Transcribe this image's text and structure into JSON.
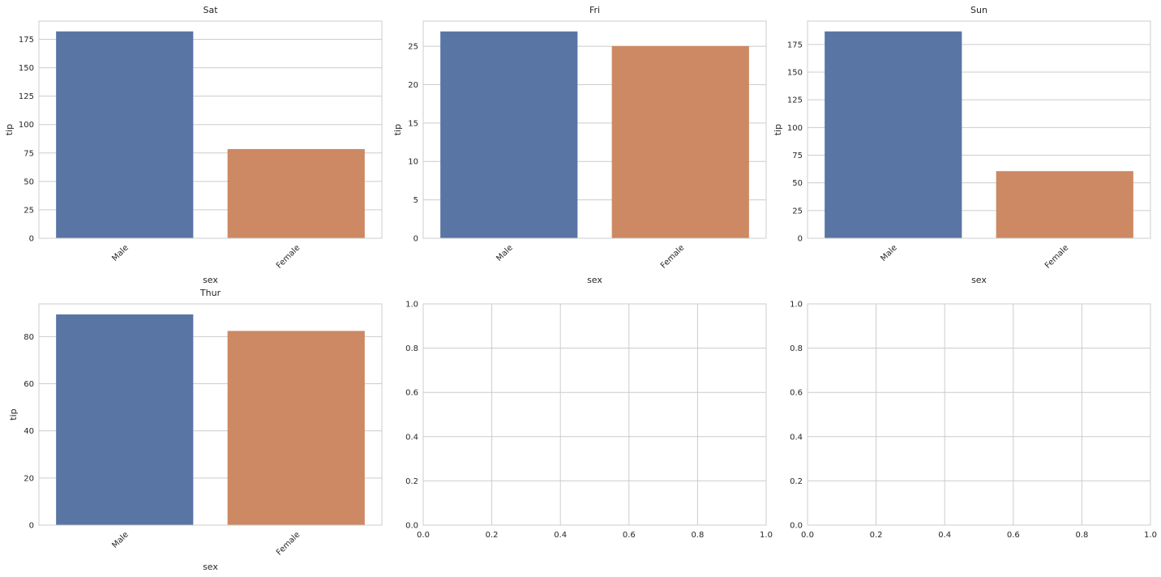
{
  "colors": {
    "Male": "#5975a4",
    "Female": "#cc8963",
    "grid": "#cccccc",
    "text": "#262626"
  },
  "chart_data": [
    {
      "type": "bar",
      "title": "Sat",
      "xlabel": "sex",
      "ylabel": "tip",
      "categories": [
        "Male",
        "Female"
      ],
      "values": [
        181.95,
        78.45
      ],
      "ylim": [
        0,
        191.04
      ],
      "yticks": [
        "0",
        "25",
        "50",
        "75",
        "100",
        "125",
        "150",
        "175"
      ],
      "grid": true
    },
    {
      "type": "bar",
      "title": "Fri",
      "xlabel": "sex",
      "ylabel": "tip",
      "categories": [
        "Male",
        "Female"
      ],
      "values": [
        26.93,
        25.03
      ],
      "ylim": [
        0,
        28.28
      ],
      "yticks": [
        "0",
        "5",
        "10",
        "15",
        "20",
        "25"
      ],
      "grid": true
    },
    {
      "type": "bar",
      "title": "Sun",
      "xlabel": "sex",
      "ylabel": "tip",
      "categories": [
        "Male",
        "Female"
      ],
      "values": [
        186.78,
        60.61
      ],
      "ylim": [
        0,
        196.12
      ],
      "yticks": [
        "0",
        "25",
        "50",
        "75",
        "100",
        "125",
        "150",
        "175"
      ],
      "grid": true
    },
    {
      "type": "bar",
      "title": "Thur",
      "xlabel": "sex",
      "ylabel": "tip",
      "categories": [
        "Male",
        "Female"
      ],
      "values": [
        89.41,
        82.42
      ],
      "ylim": [
        0,
        93.88
      ],
      "yticks": [
        "0",
        "20",
        "40",
        "60",
        "80"
      ],
      "grid": true
    },
    {
      "type": "bar",
      "title": "",
      "xlabel": "",
      "ylabel": "",
      "categories": [],
      "values": [],
      "xlim": [
        0,
        1
      ],
      "ylim": [
        0,
        1
      ],
      "xticks": [
        "0.0",
        "0.2",
        "0.4",
        "0.6",
        "0.8",
        "1.0"
      ],
      "yticks": [
        "0.0",
        "0.2",
        "0.4",
        "0.6",
        "0.8",
        "1.0"
      ],
      "grid": true
    },
    {
      "type": "bar",
      "title": "",
      "xlabel": "",
      "ylabel": "",
      "categories": [],
      "values": [],
      "xlim": [
        0,
        1
      ],
      "ylim": [
        0,
        1
      ],
      "xticks": [
        "0.0",
        "0.2",
        "0.4",
        "0.6",
        "0.8",
        "1.0"
      ],
      "yticks": [
        "0.0",
        "0.2",
        "0.4",
        "0.6",
        "0.8",
        "1.0"
      ],
      "grid": true
    }
  ]
}
